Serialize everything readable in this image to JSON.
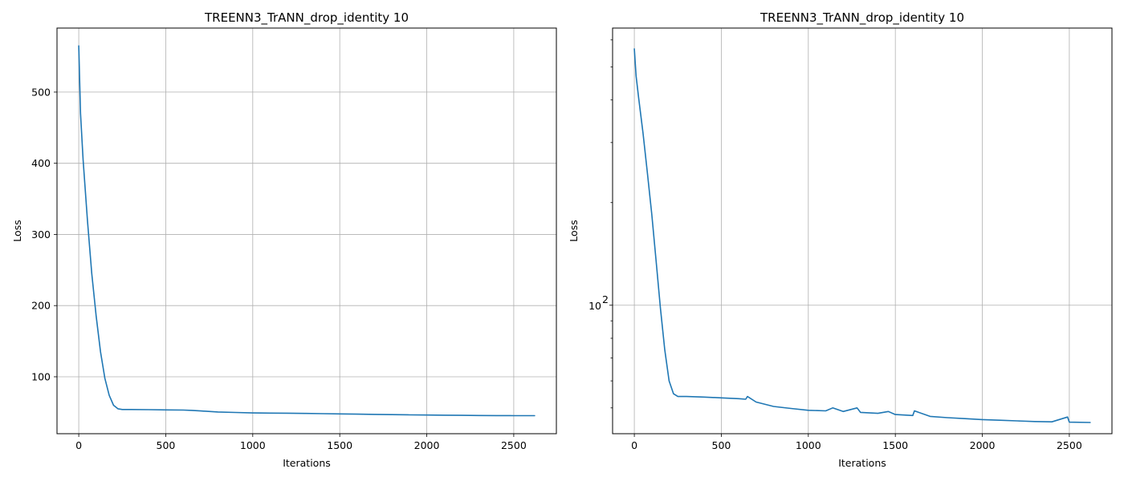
{
  "chart_data": [
    {
      "type": "line",
      "title": "TREENN3_TrANN_drop_identity 10",
      "xlabel": "Iterations",
      "ylabel": "Loss",
      "yscale": "linear",
      "grid": true,
      "xlim": [
        -125,
        2745
      ],
      "ylim": [
        20,
        590
      ],
      "xticks": [
        0,
        500,
        1000,
        1500,
        2000,
        2500
      ],
      "yticks": [
        100,
        200,
        300,
        400,
        500
      ],
      "series": [
        {
          "color": "#1f77b4",
          "x": [
            0,
            10,
            25,
            50,
            75,
            100,
            125,
            150,
            175,
            200,
            225,
            250,
            300,
            400,
            500,
            600,
            650,
            700,
            800,
            900,
            1000,
            1100,
            1200,
            1300,
            1400,
            1500,
            1600,
            1700,
            1800,
            1900,
            2000,
            2100,
            2200,
            2300,
            2400,
            2500,
            2620
          ],
          "y": [
            565,
            470,
            405,
            320,
            245,
            185,
            135,
            98,
            74,
            60,
            55,
            54,
            54,
            53.8,
            53.5,
            53.2,
            52.8,
            52,
            50.5,
            49.8,
            49.2,
            49,
            48.8,
            48.5,
            48.2,
            47.8,
            47.5,
            47.2,
            46.8,
            46.5,
            46.2,
            46,
            45.8,
            45.6,
            45.5,
            45.4,
            45.3
          ]
        }
      ]
    },
    {
      "type": "line",
      "title": "TREENN3_TrANN_drop_identity 10",
      "xlabel": "Iterations",
      "ylabel": "Loss",
      "yscale": "log",
      "grid": true,
      "xlim": [
        -125,
        2745
      ],
      "ylim": [
        42,
        650
      ],
      "xticks": [
        0,
        500,
        1000,
        1500,
        2000,
        2500
      ],
      "ytick_label": "10",
      "ytick_exponent": "2",
      "series": [
        {
          "color": "#1f77b4",
          "x": [
            0,
            10,
            25,
            50,
            75,
            100,
            125,
            150,
            175,
            200,
            225,
            250,
            300,
            400,
            500,
            600,
            640,
            650,
            700,
            800,
            900,
            1000,
            1100,
            1140,
            1200,
            1280,
            1300,
            1400,
            1460,
            1500,
            1600,
            1610,
            1700,
            1800,
            1900,
            2000,
            2100,
            2200,
            2300,
            2400,
            2490,
            2500,
            2620
          ],
          "y": [
            565,
            470,
            405,
            320,
            245,
            185,
            135,
            98,
            74,
            60,
            55,
            54,
            54,
            53.8,
            53.5,
            53.2,
            53,
            54,
            52,
            50.5,
            49.8,
            49.2,
            49,
            50,
            48.8,
            50,
            48.5,
            48.2,
            48.8,
            47.8,
            47.5,
            49,
            47.2,
            46.8,
            46.5,
            46.2,
            46,
            45.8,
            45.6,
            45.5,
            47,
            45.4,
            45.3
          ]
        }
      ]
    }
  ]
}
